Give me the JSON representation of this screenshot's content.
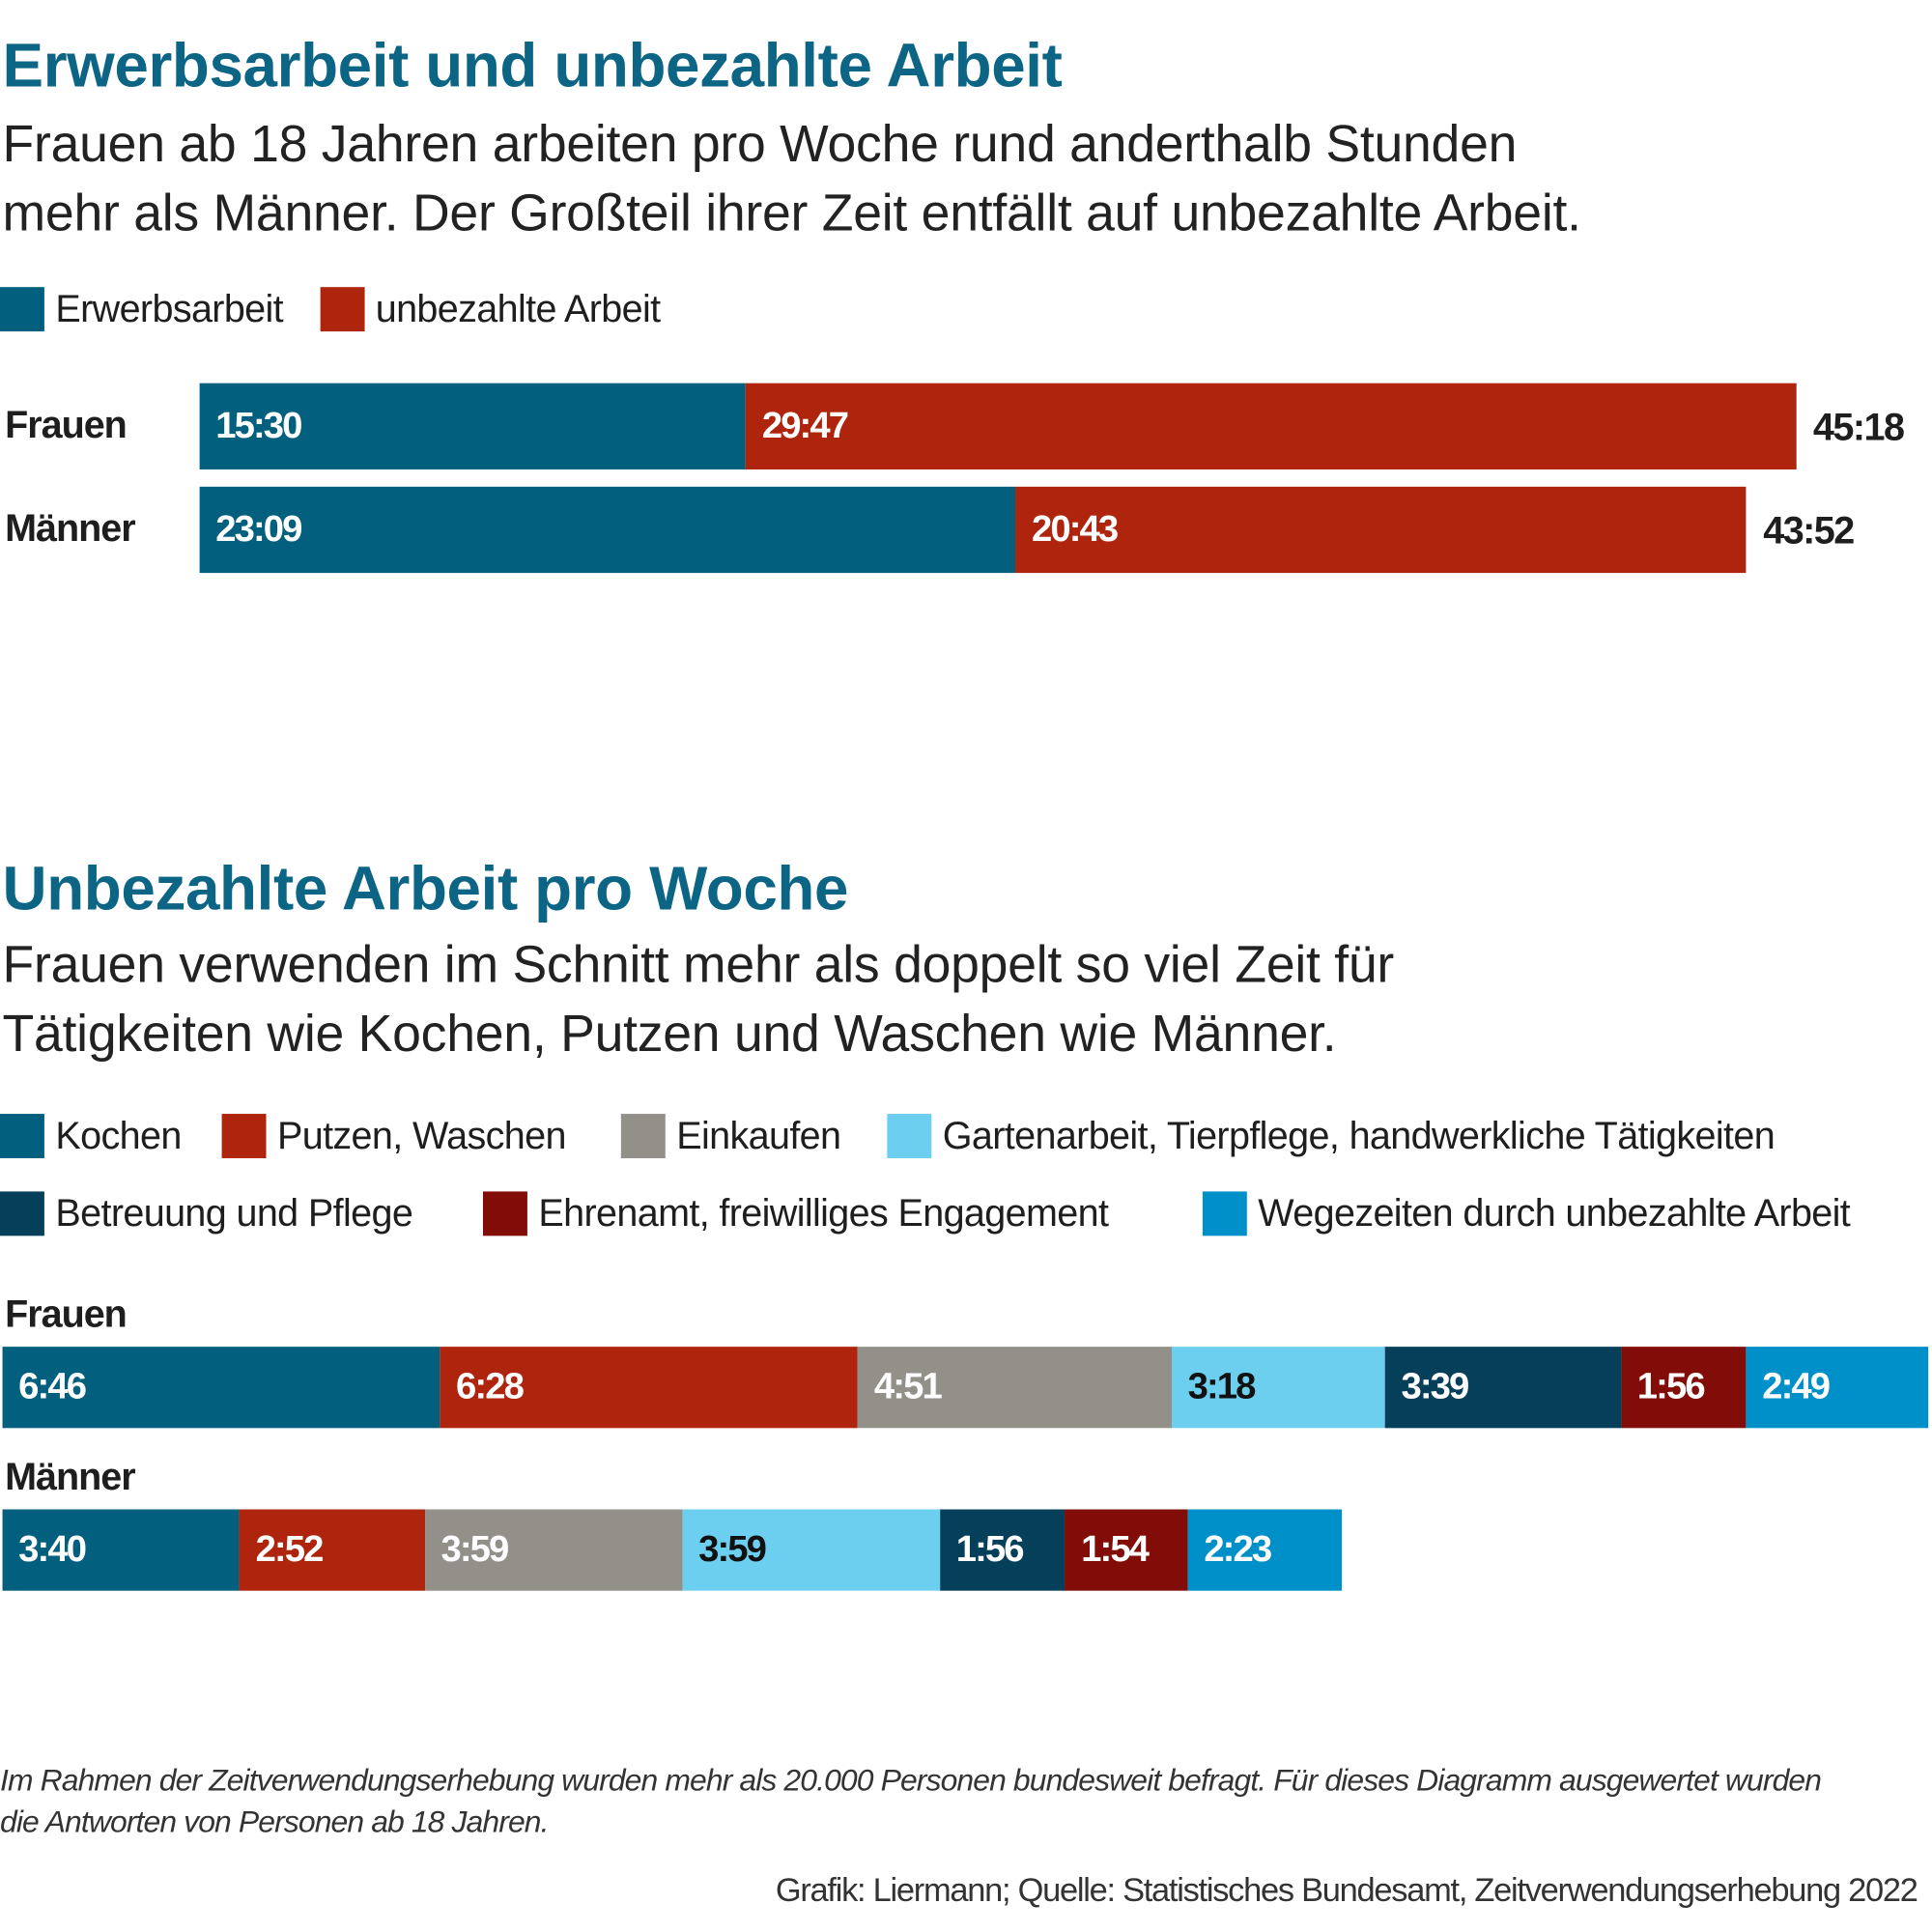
{
  "chart_data": [
    {
      "type": "bar",
      "orientation": "horizontal",
      "stacked": true,
      "title": "Erwerbsarbeit und unbezahlte Arbeit",
      "subtitle": [
        "Frauen ab 18 Jahren arbeiten pro Woche rund anderthalb Stunden",
        "mehr als Männer. Der Großteil ihrer Zeit entfällt auf unbezahlte Arbeit."
      ],
      "legend_placement": "top-left",
      "categories": [
        "Frauen",
        "Männer"
      ],
      "series": [
        {
          "name": "Erwerbsarbeit",
          "color": "#025f7e",
          "values": [
            "15:30",
            "23:09"
          ]
        },
        {
          "name": "unbezahlte Arbeit",
          "color": "#ae240c",
          "values": [
            "29:47",
            "20:43"
          ]
        }
      ],
      "totals": [
        "45:18",
        "43:52"
      ],
      "unit": "h:mm per week"
    },
    {
      "type": "bar",
      "orientation": "horizontal",
      "stacked": true,
      "title": "Unbezahlte Arbeit pro Woche",
      "subtitle": [
        "Frauen verwenden im Schnitt mehr als doppelt so viel Zeit für",
        "Tätigkeiten wie Kochen, Putzen und Waschen wie Männer."
      ],
      "legend_placement": "top-left",
      "categories": [
        "Frauen",
        "Männer"
      ],
      "series": [
        {
          "name": "Kochen",
          "color": "#025f7e",
          "label_color": "#ffffff",
          "values": [
            "6:46",
            "3:40"
          ]
        },
        {
          "name": "Putzen, Waschen",
          "color": "#ae240c",
          "label_color": "#ffffff",
          "values": [
            "6:28",
            "2:52"
          ]
        },
        {
          "name": "Einkaufen",
          "color": "#938f89",
          "label_color": "#ffffff",
          "values": [
            "4:51",
            "3:59"
          ]
        },
        {
          "name": "Gartenarbeit, Tierpflege, handwerkliche Tätigkeiten",
          "color": "#6dcff0",
          "label_color": "#111111",
          "values": [
            "3:18",
            "3:59"
          ]
        },
        {
          "name": "Betreuung und Pflege",
          "color": "#063f59",
          "label_color": "#ffffff",
          "values": [
            "3:39",
            "1:56"
          ]
        },
        {
          "name": "Ehrenamt, freiwilliges Engagement",
          "color": "#820c07",
          "label_color": "#ffffff",
          "values": [
            "1:56",
            "1:54"
          ]
        },
        {
          "name": "Wegezeiten durch unbezahlte Arbeit",
          "color": "#0090c9",
          "label_color": "#ffffff",
          "values": [
            "2:49",
            "2:23"
          ]
        }
      ],
      "unit": "h:mm per week"
    }
  ],
  "footnote": [
    "Im Rahmen der Zeitverwendungserhebung wurden mehr als 20.000 Personen bundesweit befragt. Für dieses Diagramm ausgewertet wurden",
    "die Antworten von Personen ab 18 Jahren."
  ],
  "source": "Grafik: Liermann; Quelle: Statistisches Bundesamt, Zeitverwendungserhebung 2022"
}
